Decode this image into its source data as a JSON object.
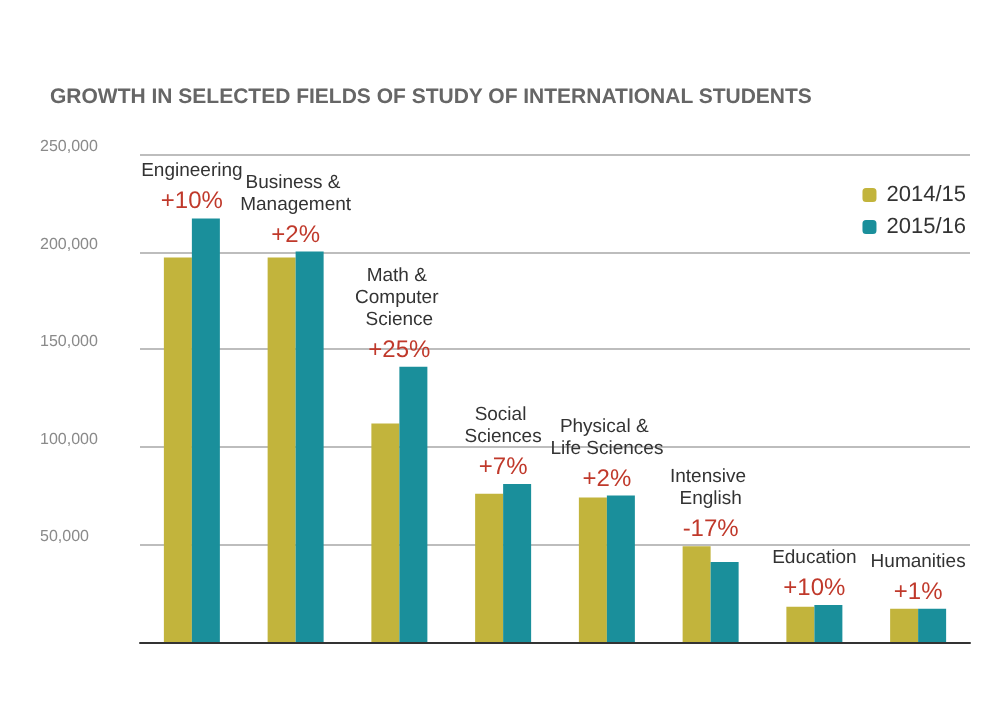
{
  "chart_data": {
    "type": "bar",
    "title": "GROWTH IN SELECTED FIELDS OF STUDY OF INTERNATIONAL STUDENTS",
    "categories": [
      "Engineering",
      "Business & Management",
      "Math & Computer Science",
      "Social Sciences",
      "Physical & Life Sciences",
      "Intensive English",
      "Education",
      "Humanities"
    ],
    "series": [
      {
        "name": "2014/15",
        "color": "#c2b43c",
        "values": [
          197000,
          197000,
          112000,
          76000,
          74000,
          49000,
          18000,
          17000
        ]
      },
      {
        "name": "2015/16",
        "color": "#1a8f9b",
        "values": [
          217000,
          200000,
          141000,
          81000,
          75000,
          41000,
          19000,
          17000
        ]
      }
    ],
    "annotations": [
      {
        "text": "+10%",
        "x": "Engineering",
        "y": 217000
      },
      {
        "text": "+2%",
        "x": "Business & Management",
        "y": 200000
      },
      {
        "text": "+25%",
        "x": "Math & Computer Science",
        "y": 141000
      },
      {
        "text": "+7%",
        "x": "Social Sciences",
        "y": 81000
      },
      {
        "text": "+2%",
        "x": "Physical & Life Sciences",
        "y": 75000
      },
      {
        "text": "-17%",
        "x": "Intensive English",
        "y": 49000
      },
      {
        "text": "+10%",
        "x": "Education",
        "y": 19000
      },
      {
        "text": "+1%",
        "x": "Humanities",
        "y": 17000
      }
    ],
    "ylim": [
      0,
      250000
    ],
    "yticks": [
      {
        "value": 50000,
        "label": "50,000"
      },
      {
        "value": 100000,
        "label": "100,000"
      },
      {
        "value": 150000,
        "label": "150,000"
      },
      {
        "value": 200000,
        "label": "200,000"
      },
      {
        "value": 250000,
        "label": "250,000"
      }
    ],
    "grid": "y",
    "legend": "top right"
  }
}
